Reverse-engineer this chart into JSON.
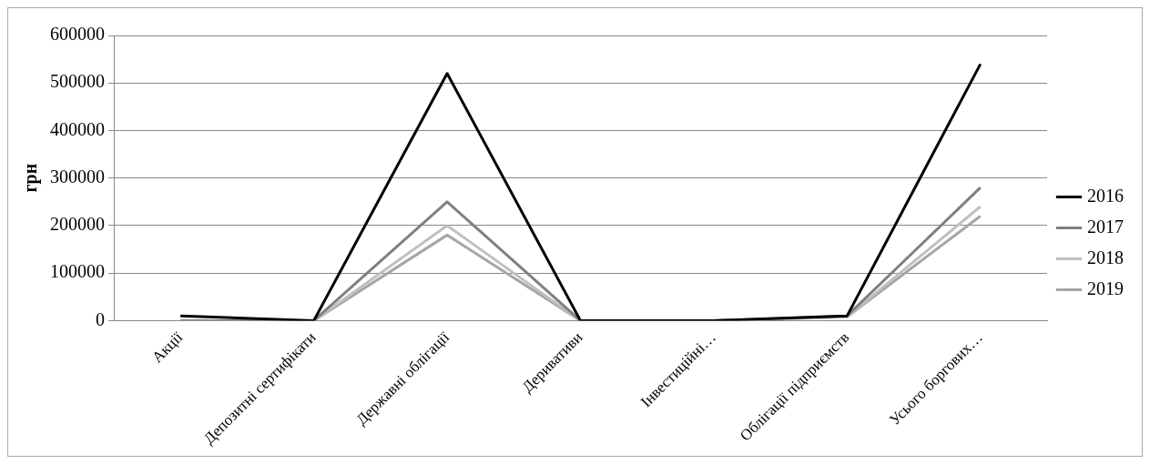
{
  "chart_data": {
    "type": "line",
    "ylabel": "грн",
    "categories": [
      "Акції",
      "Депозитні сертифікати",
      "Державні облігації",
      "Деривативи",
      "Інвестиційні…",
      "Облігації підприємств",
      "Усього боргових…"
    ],
    "series": [
      {
        "name": "2016",
        "color": "#000000",
        "values": [
          10000,
          0,
          520000,
          0,
          0,
          10000,
          540000
        ]
      },
      {
        "name": "2017",
        "color": "#808080",
        "values": [
          0,
          0,
          250000,
          0,
          0,
          10000,
          280000
        ]
      },
      {
        "name": "2018",
        "color": "#c0c0c0",
        "values": [
          0,
          0,
          200000,
          0,
          0,
          8000,
          240000
        ]
      },
      {
        "name": "2019",
        "color": "#a6a6a6",
        "values": [
          0,
          0,
          180000,
          0,
          0,
          8000,
          220000
        ]
      }
    ],
    "ylim": [
      0,
      600000
    ],
    "yticks": [
      0,
      100000,
      200000,
      300000,
      400000,
      500000,
      600000
    ],
    "grid": "y",
    "legend": "right",
    "marker": "none",
    "line_style": "solid"
  }
}
